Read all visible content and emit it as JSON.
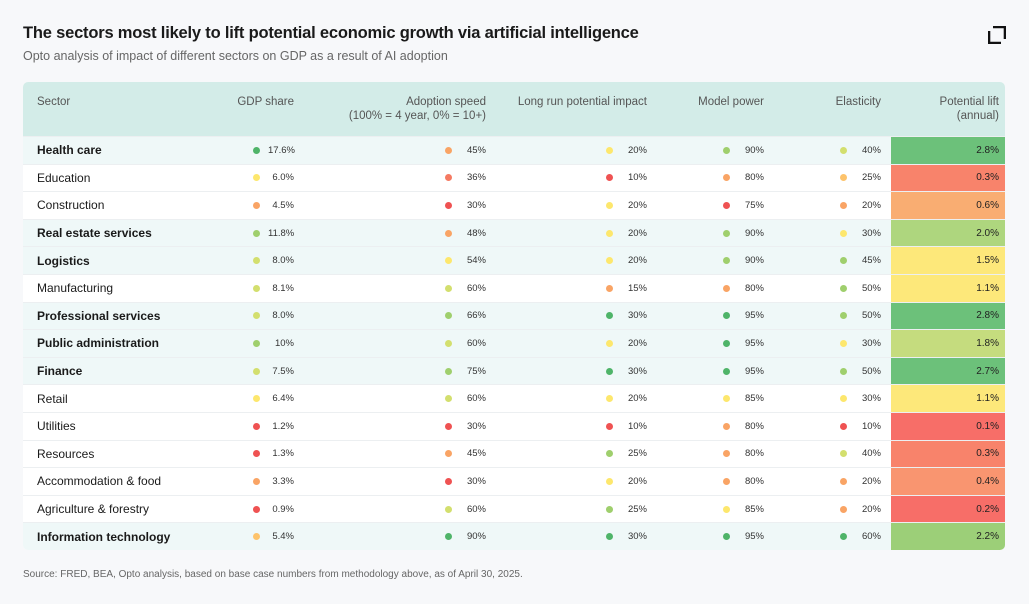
{
  "title": "The sectors most likely to lift potential economic growth via artificial intelligence",
  "subtitle": "Opto analysis of impact of different sectors on GDP as a result of AI adoption",
  "source": "Source: FRED, BEA, Opto analysis, based on base case numbers from methodology above, as of April 30, 2025.",
  "colors": {
    "G": "#4fb469",
    "LG": "#9fcf6d",
    "YG": "#d3df6e",
    "Y": "#fde76d",
    "LO": "#fdc36b",
    "O": "#f9a465",
    "RO": "#f57a62",
    "R": "#ef5252"
  },
  "chart_data": {
    "type": "table",
    "headers": [
      "Sector",
      "GDP share",
      "Adoption speed",
      "Long run potential impact",
      "Model power",
      "Elasticity",
      "Potential lift"
    ],
    "header_sub": {
      "adoption": "(100% = 4 year, 0% = 10+)",
      "lift": "(annual)"
    },
    "rows": [
      {
        "sector": "Health care",
        "bold": true,
        "gdp": "17.6%",
        "gc": "G",
        "adopt": "45%",
        "ac": "O",
        "lr": "20%",
        "lc": "Y",
        "mp": "90%",
        "mc": "LG",
        "el": "40%",
        "ec": "YG",
        "lift": "2.8%",
        "lift_color": "#6cc17a"
      },
      {
        "sector": "Education",
        "bold": false,
        "gdp": "6.0%",
        "gc": "Y",
        "adopt": "36%",
        "ac": "RO",
        "lr": "10%",
        "lc": "R",
        "mp": "80%",
        "mc": "O",
        "el": "25%",
        "ec": "LO",
        "lift": "0.3%",
        "lift_color": "#f8836b"
      },
      {
        "sector": "Construction",
        "bold": false,
        "gdp": "4.5%",
        "gc": "O",
        "adopt": "30%",
        "ac": "R",
        "lr": "20%",
        "lc": "Y",
        "mp": "75%",
        "mc": "R",
        "el": "20%",
        "ec": "O",
        "lift": "0.6%",
        "lift_color": "#f9ad72"
      },
      {
        "sector": "Real estate services",
        "bold": true,
        "gdp": "11.8%",
        "gc": "LG",
        "adopt": "48%",
        "ac": "O",
        "lr": "20%",
        "lc": "Y",
        "mp": "90%",
        "mc": "LG",
        "el": "30%",
        "ec": "Y",
        "lift": "2.0%",
        "lift_color": "#aed67e"
      },
      {
        "sector": "Logistics",
        "bold": true,
        "gdp": "8.0%",
        "gc": "YG",
        "adopt": "54%",
        "ac": "Y",
        "lr": "20%",
        "lc": "Y",
        "mp": "90%",
        "mc": "LG",
        "el": "45%",
        "ec": "LG",
        "lift": "1.5%",
        "lift_color": "#fde87a"
      },
      {
        "sector": "Manufacturing",
        "bold": false,
        "gdp": "8.1%",
        "gc": "YG",
        "adopt": "60%",
        "ac": "YG",
        "lr": "15%",
        "lc": "O",
        "mp": "80%",
        "mc": "O",
        "el": "50%",
        "ec": "LG",
        "lift": "1.1%",
        "lift_color": "#fde87a"
      },
      {
        "sector": "Professional services",
        "bold": true,
        "gdp": "8.0%",
        "gc": "YG",
        "adopt": "66%",
        "ac": "LG",
        "lr": "30%",
        "lc": "G",
        "mp": "95%",
        "mc": "G",
        "el": "50%",
        "ec": "LG",
        "lift": "2.8%",
        "lift_color": "#6cc17a"
      },
      {
        "sector": "Public administration",
        "bold": true,
        "gdp": "10%",
        "gc": "LG",
        "adopt": "60%",
        "ac": "YG",
        "lr": "20%",
        "lc": "Y",
        "mp": "95%",
        "mc": "G",
        "el": "30%",
        "ec": "Y",
        "lift": "1.8%",
        "lift_color": "#c5dc7e"
      },
      {
        "sector": "Finance",
        "bold": true,
        "gdp": "7.5%",
        "gc": "YG",
        "adopt": "75%",
        "ac": "LG",
        "lr": "30%",
        "lc": "G",
        "mp": "95%",
        "mc": "G",
        "el": "50%",
        "ec": "LG",
        "lift": "2.7%",
        "lift_color": "#6cc17a"
      },
      {
        "sector": "Retail",
        "bold": false,
        "gdp": "6.4%",
        "gc": "Y",
        "adopt": "60%",
        "ac": "YG",
        "lr": "20%",
        "lc": "Y",
        "mp": "85%",
        "mc": "Y",
        "el": "30%",
        "ec": "Y",
        "lift": "1.1%",
        "lift_color": "#fde87a"
      },
      {
        "sector": "Utilities",
        "bold": false,
        "gdp": "1.2%",
        "gc": "R",
        "adopt": "30%",
        "ac": "R",
        "lr": "10%",
        "lc": "R",
        "mp": "80%",
        "mc": "O",
        "el": "10%",
        "ec": "R",
        "lift": "0.1%",
        "lift_color": "#f76e68"
      },
      {
        "sector": "Resources",
        "bold": false,
        "gdp": "1.3%",
        "gc": "R",
        "adopt": "45%",
        "ac": "O",
        "lr": "25%",
        "lc": "LG",
        "mp": "80%",
        "mc": "O",
        "el": "40%",
        "ec": "YG",
        "lift": "0.3%",
        "lift_color": "#f8836b"
      },
      {
        "sector": "Accommodation & food",
        "bold": false,
        "gdp": "3.3%",
        "gc": "O",
        "adopt": "30%",
        "ac": "R",
        "lr": "20%",
        "lc": "Y",
        "mp": "80%",
        "mc": "O",
        "el": "20%",
        "ec": "O",
        "lift": "0.4%",
        "lift_color": "#f99570"
      },
      {
        "sector": "Agriculture & forestry",
        "bold": false,
        "gdp": "0.9%",
        "gc": "R",
        "adopt": "60%",
        "ac": "YG",
        "lr": "25%",
        "lc": "LG",
        "mp": "85%",
        "mc": "Y",
        "el": "20%",
        "ec": "O",
        "lift": "0.2%",
        "lift_color": "#f76e68"
      },
      {
        "sector": "Information technology",
        "bold": true,
        "gdp": "5.4%",
        "gc": "LO",
        "adopt": "90%",
        "ac": "G",
        "lr": "30%",
        "lc": "G",
        "mp": "95%",
        "mc": "G",
        "el": "60%",
        "ec": "G",
        "lift": "2.2%",
        "lift_color": "#9ccf78"
      }
    ]
  }
}
